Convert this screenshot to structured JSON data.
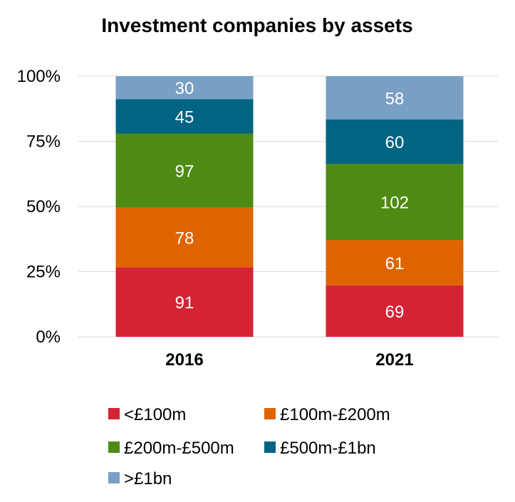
{
  "chart_data": {
    "type": "bar",
    "stacked": "percent",
    "title": "Investment companies by assets",
    "categories": [
      "2016",
      "2021"
    ],
    "y_ticks": [
      "0%",
      "25%",
      "50%",
      "75%",
      "100%"
    ],
    "ylim": [
      0,
      100
    ],
    "grid": true,
    "legend_position": "bottom",
    "series": [
      {
        "name": "<£100m",
        "color": "#d42434",
        "values": [
          91,
          69
        ]
      },
      {
        "name": "£100m-£200m",
        "color": "#df6400",
        "values": [
          78,
          61
        ]
      },
      {
        "name": "£200m-£500m",
        "color": "#4e8b12",
        "values": [
          97,
          102
        ]
      },
      {
        "name": "£500m-£1bn",
        "color": "#006482",
        "values": [
          45,
          60
        ]
      },
      {
        "name": ">£1bn",
        "color": "#7a9fc4",
        "values": [
          30,
          58
        ]
      }
    ]
  }
}
